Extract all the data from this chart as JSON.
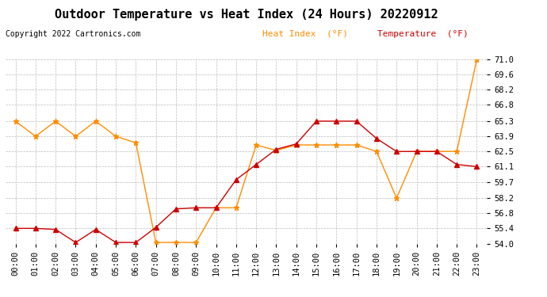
{
  "title": "Outdoor Temperature vs Heat Index (24 Hours) 20220912",
  "copyright": "Copyright 2022 Cartronics.com",
  "legend_heat_index": "Heat Index  (°F)",
  "legend_temperature": "Temperature  (°F)",
  "x_labels": [
    "00:00",
    "01:00",
    "02:00",
    "03:00",
    "04:00",
    "05:00",
    "06:00",
    "07:00",
    "08:00",
    "09:00",
    "10:00",
    "11:00",
    "12:00",
    "13:00",
    "14:00",
    "15:00",
    "16:00",
    "17:00",
    "18:00",
    "19:00",
    "20:00",
    "21:00",
    "22:00",
    "23:00"
  ],
  "temperature": [
    55.4,
    55.4,
    55.3,
    54.1,
    55.3,
    54.1,
    54.1,
    55.5,
    57.2,
    57.3,
    57.3,
    59.9,
    61.3,
    62.7,
    63.2,
    65.3,
    65.3,
    65.3,
    63.7,
    62.5,
    62.5,
    62.5,
    61.3,
    61.1
  ],
  "heat_index": [
    65.3,
    63.9,
    65.3,
    63.9,
    65.3,
    63.9,
    63.3,
    54.1,
    54.1,
    54.1,
    57.3,
    57.3,
    63.1,
    62.6,
    63.1,
    63.1,
    63.1,
    63.1,
    62.5,
    58.2,
    62.5,
    62.5,
    62.5,
    71.0
  ],
  "ylim": [
    54.0,
    71.0
  ],
  "yticks": [
    54.0,
    55.4,
    56.8,
    58.2,
    59.7,
    61.1,
    62.5,
    63.9,
    65.3,
    66.8,
    68.2,
    69.6,
    71.0
  ],
  "color_heat_index": "#FF8C00",
  "color_temperature": "#CC0000",
  "background_color": "#ffffff",
  "grid_color": "#bbbbbb",
  "title_fontsize": 11,
  "tick_fontsize": 7.5,
  "copyright_fontsize": 7,
  "legend_fontsize": 8
}
